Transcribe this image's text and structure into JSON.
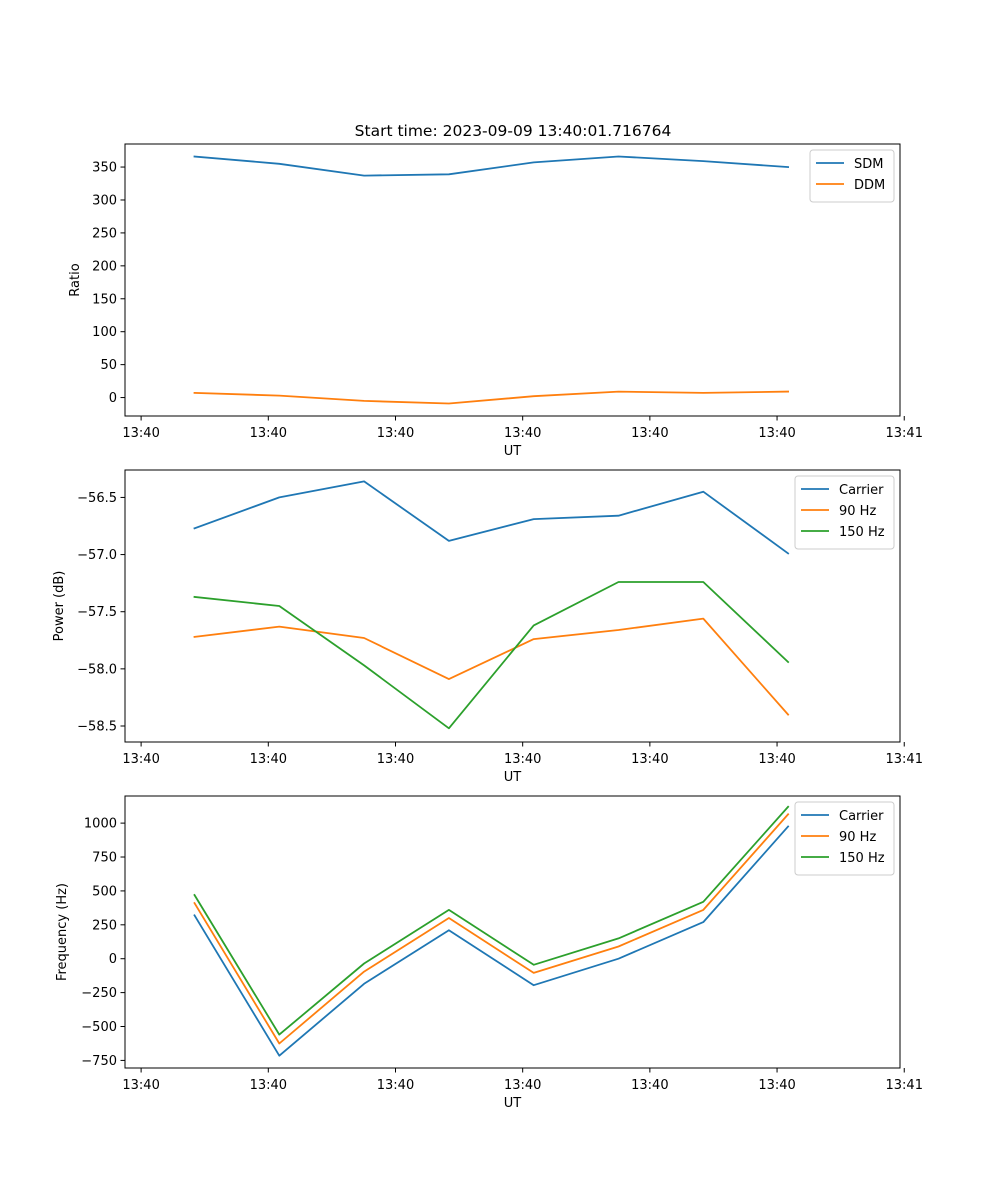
{
  "figure_title": "Start time: 2023-09-09 13:40:01.716764",
  "colors": {
    "blue": "#1f77b4",
    "orange": "#ff7f0e",
    "green": "#2ca02c"
  },
  "chart_data": [
    {
      "type": "line",
      "title": "Start time: 2023-09-09 13:40:01.716764",
      "xlabel": "UT",
      "ylabel": "Ratio",
      "x": [
        1,
        2,
        3,
        4,
        5,
        6,
        7,
        8
      ],
      "xlim": [
        0.18,
        9.32
      ],
      "x_ticks": [
        0.37,
        1.87,
        3.37,
        4.87,
        6.37,
        7.87,
        9.37
      ],
      "x_tick_labels": [
        "13:40",
        "13:40",
        "13:40",
        "13:40",
        "13:40",
        "13:40",
        "13:41"
      ],
      "ylim": [
        -28,
        385
      ],
      "y_ticks": [
        0,
        50,
        100,
        150,
        200,
        250,
        300,
        350
      ],
      "y_tick_labels": [
        "0",
        "50",
        "100",
        "150",
        "200",
        "250",
        "300",
        "350"
      ],
      "legend_position": "top-right",
      "series": [
        {
          "name": "SDM",
          "color": "#1f77b4",
          "values": [
            366,
            355,
            337,
            339,
            357,
            366,
            359,
            350
          ]
        },
        {
          "name": "DDM",
          "color": "#ff7f0e",
          "values": [
            7,
            3,
            -5,
            -9,
            2,
            9,
            7,
            9
          ]
        }
      ]
    },
    {
      "type": "line",
      "title": "",
      "xlabel": "UT",
      "ylabel": "Power (dB)",
      "x": [
        1,
        2,
        3,
        4,
        5,
        6,
        7,
        8
      ],
      "xlim": [
        0.18,
        9.32
      ],
      "x_ticks": [
        0.37,
        1.87,
        3.37,
        4.87,
        6.37,
        7.87,
        9.37
      ],
      "x_tick_labels": [
        "13:40",
        "13:40",
        "13:40",
        "13:40",
        "13:40",
        "13:40",
        "13:41"
      ],
      "ylim": [
        -58.64,
        -56.26
      ],
      "y_ticks": [
        -58.5,
        -58.0,
        -57.5,
        -57.0,
        -56.5
      ],
      "y_tick_labels": [
        "−58.5",
        "−58.0",
        "−57.5",
        "−57.0",
        "−56.5"
      ],
      "legend_position": "top-right",
      "series": [
        {
          "name": "Carrier",
          "color": "#1f77b4",
          "values": [
            -56.77,
            -56.5,
            -56.36,
            -56.88,
            -56.69,
            -56.66,
            -56.45,
            -56.99
          ]
        },
        {
          "name": "90 Hz",
          "color": "#ff7f0e",
          "values": [
            -57.72,
            -57.63,
            -57.73,
            -58.09,
            -57.74,
            -57.66,
            -57.56,
            -58.4
          ]
        },
        {
          "name": "150 Hz",
          "color": "#2ca02c",
          "values": [
            -57.37,
            -57.45,
            -57.97,
            -58.52,
            -57.62,
            -57.24,
            -57.24,
            -57.94
          ]
        }
      ]
    },
    {
      "type": "line",
      "title": "",
      "xlabel": "UT",
      "ylabel": "Frequency (Hz)",
      "x": [
        1,
        2,
        3,
        4,
        5,
        6,
        7,
        8
      ],
      "xlim": [
        0.18,
        9.32
      ],
      "x_ticks": [
        0.37,
        1.87,
        3.37,
        4.87,
        6.37,
        7.87,
        9.37
      ],
      "x_tick_labels": [
        "13:40",
        "13:40",
        "13:40",
        "13:40",
        "13:40",
        "13:40",
        "13:41"
      ],
      "ylim": [
        -806,
        1200
      ],
      "y_ticks": [
        -750,
        -500,
        -250,
        0,
        250,
        500,
        750,
        1000
      ],
      "y_tick_labels": [
        "−750",
        "−500",
        "−250",
        "0",
        "250",
        "500",
        "750",
        "1000"
      ],
      "legend_position": "top-right",
      "series": [
        {
          "name": "Carrier",
          "color": "#1f77b4",
          "values": [
            320,
            -715,
            -185,
            210,
            -195,
            0,
            270,
            975
          ]
        },
        {
          "name": "90 Hz",
          "color": "#ff7f0e",
          "values": [
            410,
            -625,
            -95,
            300,
            -105,
            90,
            360,
            1065
          ]
        },
        {
          "name": "150 Hz",
          "color": "#2ca02c",
          "values": [
            470,
            -560,
            -35,
            360,
            -45,
            150,
            420,
            1120
          ]
        }
      ]
    }
  ]
}
